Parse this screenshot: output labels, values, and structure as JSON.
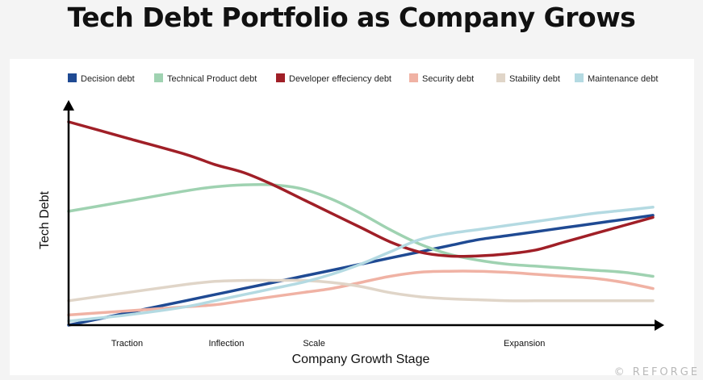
{
  "title": "Tech Debt Portfolio as Company Grows",
  "watermark": "© REFORGE",
  "chart_data": {
    "type": "line",
    "title": "Tech Debt Portfolio as Company Grows",
    "xlabel": "Company Growth Stage",
    "ylabel": "Tech Debt",
    "xlim": [
      0,
      100
    ],
    "ylim": [
      0,
      100
    ],
    "grid": false,
    "legend_position": "top",
    "x_ticks": [
      {
        "label": "Traction",
        "x": 10
      },
      {
        "label": "Inflection",
        "x": 27
      },
      {
        "label": "Scale",
        "x": 42
      },
      {
        "label": "Expansion",
        "x": 78
      }
    ],
    "x": [
      0,
      10,
      20,
      25,
      30,
      35,
      40,
      45,
      50,
      55,
      60,
      65,
      70,
      75,
      80,
      85,
      90,
      95,
      100
    ],
    "series": [
      {
        "name": "Decision debt",
        "color": "#1f4a93",
        "values": [
          0,
          6,
          12,
          15,
          18,
          21,
          24,
          27,
          30,
          33,
          36,
          39,
          42,
          44,
          46,
          48,
          50,
          52,
          54
        ]
      },
      {
        "name": "Technical Product debt",
        "color": "#9fd2b1",
        "values": [
          56,
          61,
          66,
          68,
          69,
          69,
          67,
          62,
          55,
          47,
          40,
          35,
          32,
          30,
          29,
          28,
          27,
          26,
          24
        ]
      },
      {
        "name": "Developer effeciency debt",
        "color": "#a01f27",
        "values": [
          100,
          92,
          84,
          79,
          75,
          69,
          62,
          55,
          48,
          41,
          36,
          34,
          34,
          35,
          37,
          41,
          45,
          49,
          53
        ]
      },
      {
        "name": "Security debt",
        "color": "#f0b2a4",
        "values": [
          5,
          7,
          9,
          10,
          12,
          14,
          16,
          18,
          21,
          24,
          26,
          26.5,
          26.5,
          26,
          25,
          24,
          23,
          21,
          18
        ]
      },
      {
        "name": "Stability debt",
        "color": "#e0d5c8",
        "values": [
          12,
          16,
          20,
          21.5,
          22,
          22,
          22,
          21,
          19,
          16,
          14,
          13,
          12.5,
          12,
          12,
          12,
          12,
          12,
          12
        ]
      },
      {
        "name": "Maintenance debt",
        "color": "#b4dae2",
        "values": [
          2,
          5,
          9,
          12,
          15,
          18,
          21,
          25,
          30,
          36,
          42,
          45,
          47,
          49,
          51,
          53,
          55,
          56.5,
          58
        ]
      }
    ]
  }
}
